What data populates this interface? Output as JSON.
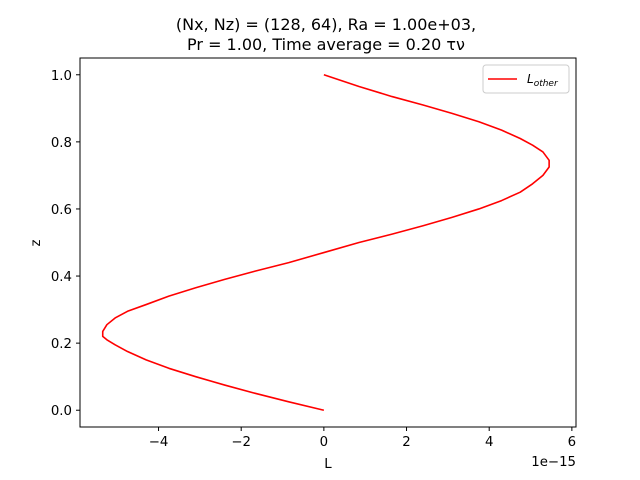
{
  "chart_data": {
    "type": "line",
    "title_lines": [
      "(Nx, Nz) = (128, 64), Ra = 1.00e+03,",
      "Pr = 1.00, Time average = 0.20 τν"
    ],
    "xlabel": "L",
    "ylabel": "z",
    "x_offset_label": "1e−15",
    "xlim": [
      -5.9,
      6.1
    ],
    "ylim": [
      -0.05,
      1.05
    ],
    "xticks": [
      -4,
      -2,
      0,
      2,
      4,
      6
    ],
    "xtick_labels": [
      "−4",
      "−2",
      "0",
      "2",
      "4",
      "6"
    ],
    "yticks": [
      0.0,
      0.2,
      0.4,
      0.6,
      0.8,
      1.0
    ],
    "ytick_labels": [
      "0.0",
      "0.2",
      "0.4",
      "0.6",
      "0.8",
      "1.0"
    ],
    "grid": false,
    "legend": {
      "placement": "top-right",
      "entries": [
        {
          "label_main": "L",
          "label_sub": "other",
          "color": "#ff0000"
        }
      ]
    },
    "series": [
      {
        "name": "L_other",
        "color": "#ff0000",
        "x_scaled": [
          0.0,
          -0.85,
          -1.65,
          -2.4,
          -3.1,
          -3.75,
          -4.3,
          -4.75,
          -5.05,
          -5.25,
          -5.35,
          -5.35,
          -5.25,
          -5.05,
          -4.75,
          -4.3,
          -3.75,
          -3.1,
          -2.4,
          -1.65,
          -0.85,
          0.0,
          0.85,
          1.65,
          2.4,
          3.1,
          3.75,
          4.3,
          4.75,
          5.05,
          5.3,
          5.45,
          5.45,
          5.3,
          5.05,
          4.75,
          4.3,
          3.75,
          3.1,
          2.4,
          1.65,
          0.85,
          0.0
        ],
        "z": [
          0.0,
          0.025,
          0.05,
          0.075,
          0.1,
          0.125,
          0.15,
          0.175,
          0.195,
          0.21,
          0.22,
          0.235,
          0.255,
          0.275,
          0.295,
          0.315,
          0.34,
          0.365,
          0.39,
          0.415,
          0.44,
          0.47,
          0.5,
          0.525,
          0.55,
          0.575,
          0.6,
          0.625,
          0.65,
          0.675,
          0.7,
          0.725,
          0.745,
          0.77,
          0.79,
          0.81,
          0.835,
          0.86,
          0.885,
          0.91,
          0.935,
          0.965,
          1.0
        ]
      }
    ]
  }
}
